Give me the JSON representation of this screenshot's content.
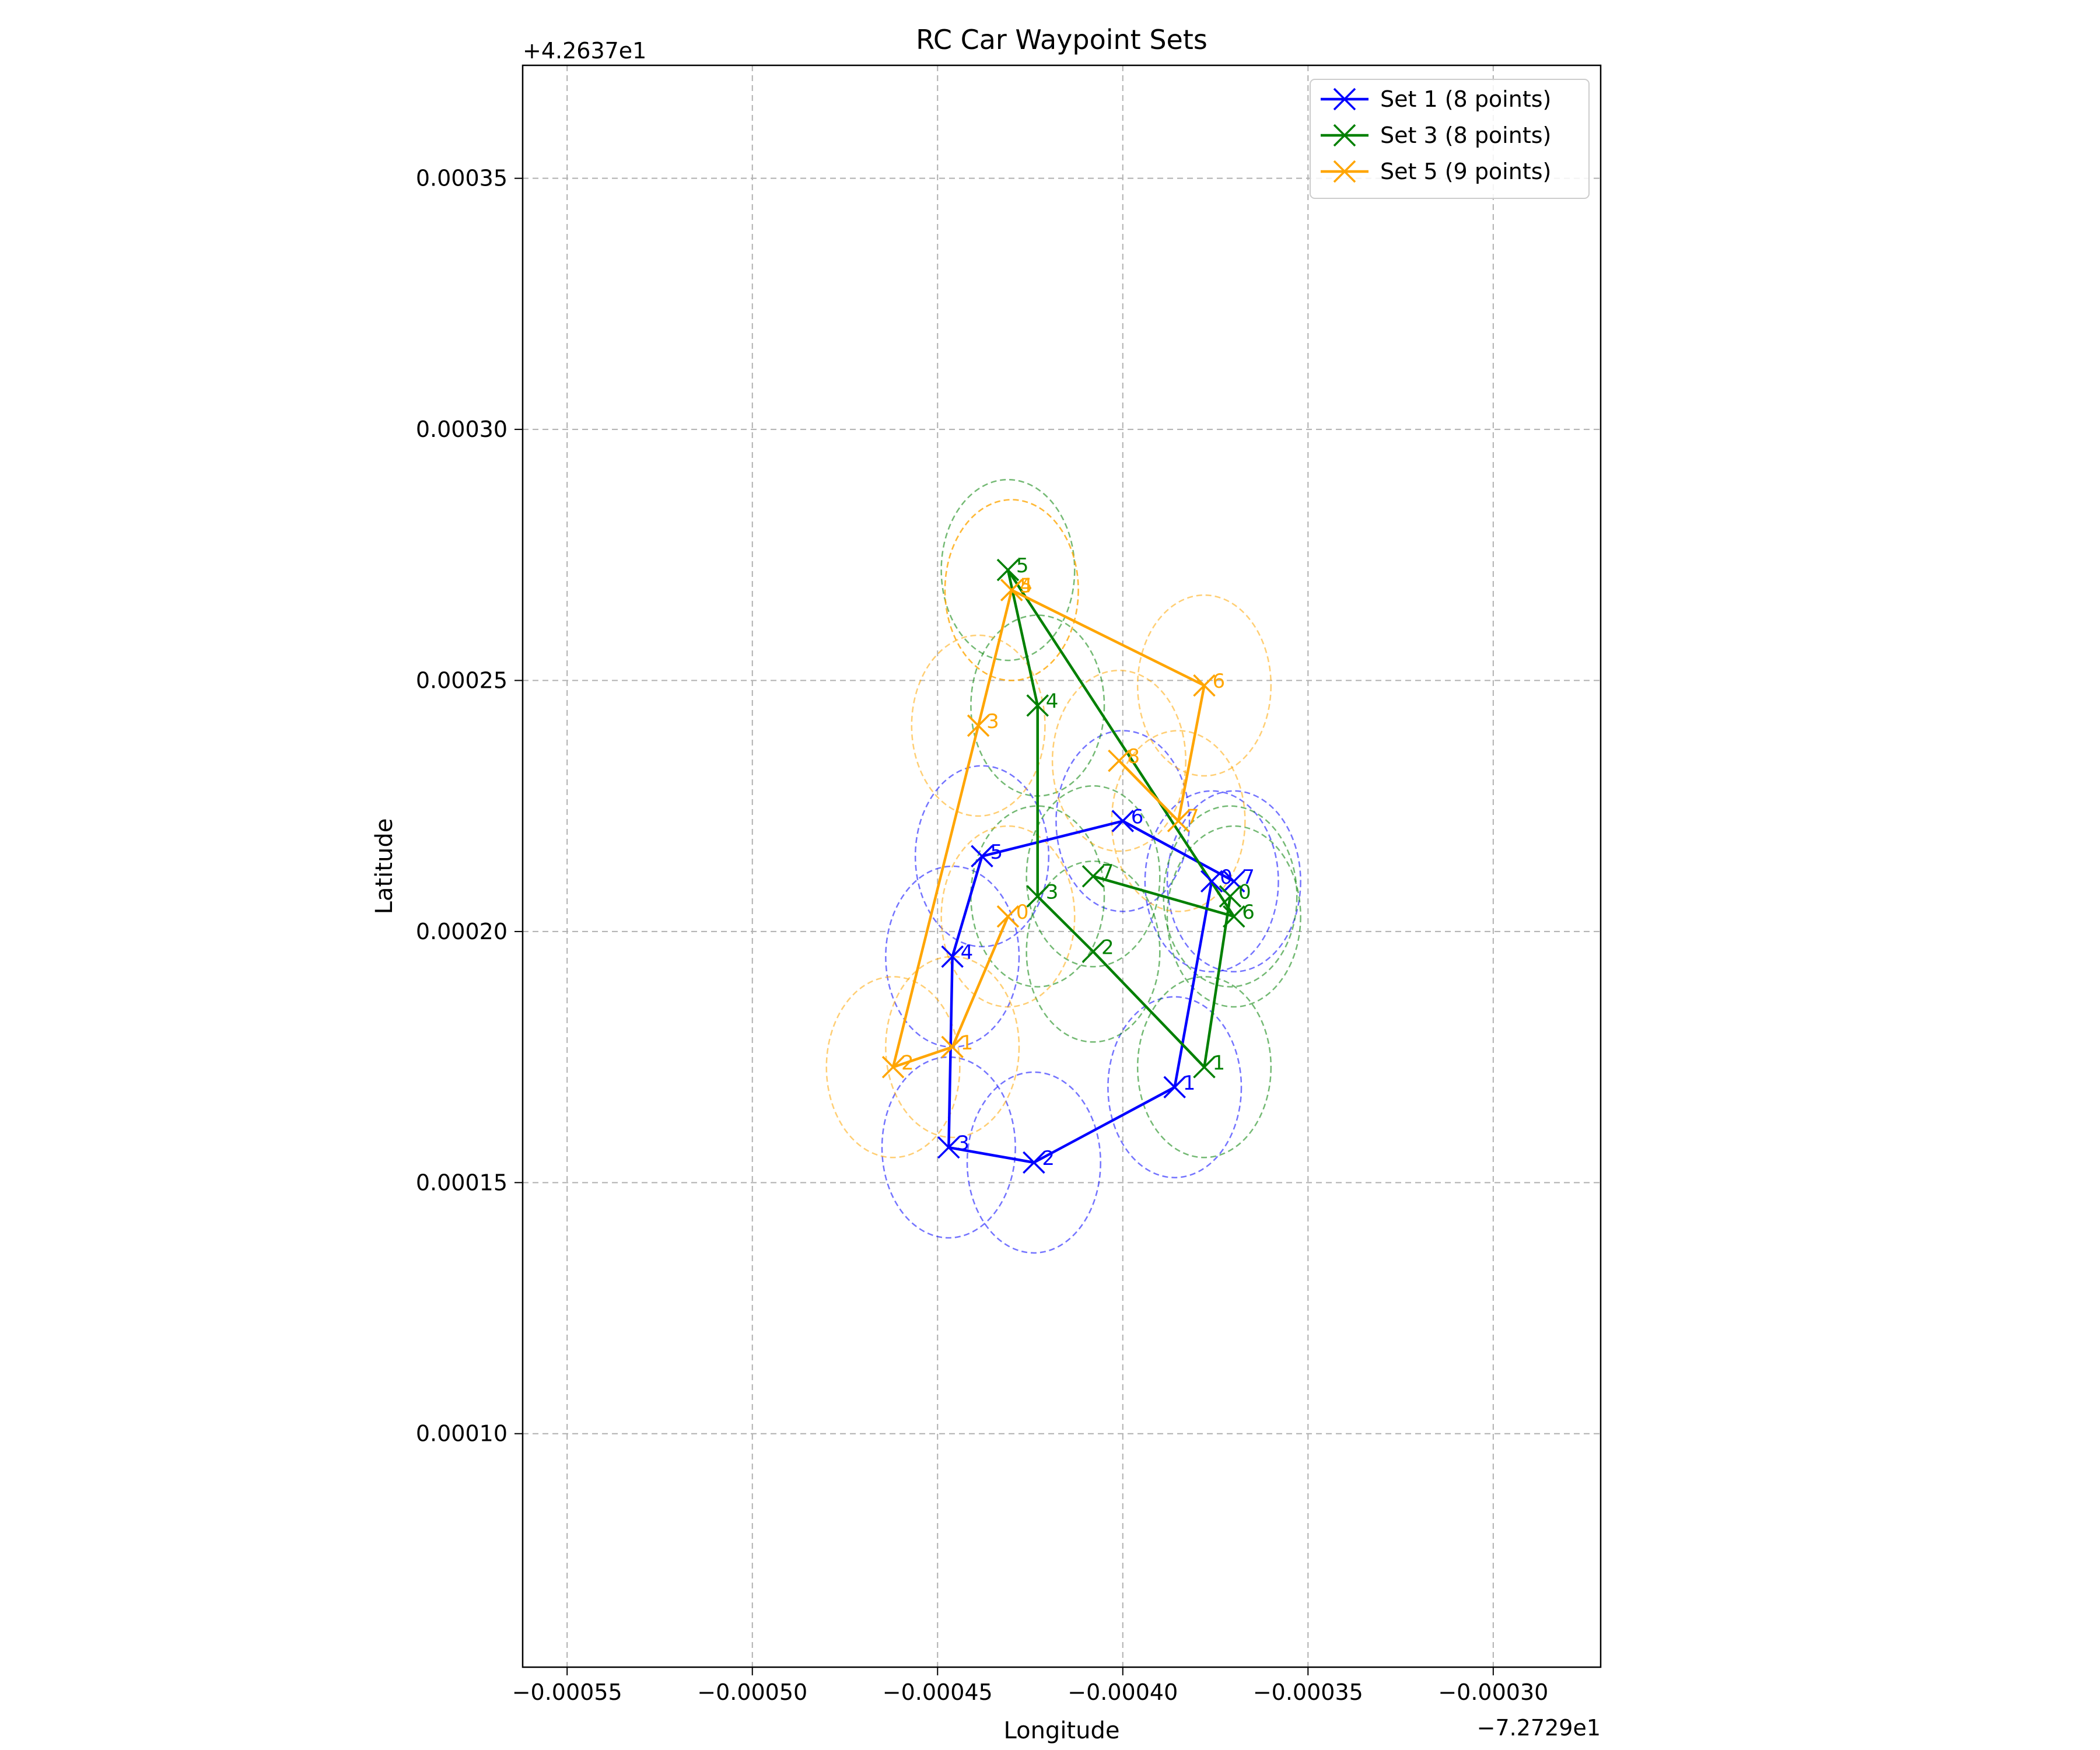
{
  "chart_data": {
    "type": "line",
    "title": "RC Car Waypoint Sets",
    "xlabel": "Longitude",
    "ylabel": "Latitude",
    "x_offset_label": "−7.2729e1",
    "y_offset_label": "+4.2637e1",
    "xlim": [
      -0.000562,
      -0.000271
    ],
    "ylim": [
      5.35e-05,
      0.0003725
    ],
    "x_ticks": [
      -0.00055,
      -0.0005,
      -0.00045,
      -0.0004,
      -0.00035,
      -0.0003
    ],
    "x_tick_labels": [
      "−0.00055",
      "−0.00050",
      "−0.00045",
      "−0.00040",
      "−0.00035",
      "−0.00030"
    ],
    "y_ticks": [
      0.0001,
      0.00015,
      0.0002,
      0.00025,
      0.0003,
      0.00035
    ],
    "y_tick_labels": [
      "0.00010",
      "0.00015",
      "0.00020",
      "0.00025",
      "0.00030",
      "0.00035"
    ],
    "grid": true,
    "legend_position": "top-right",
    "series": [
      {
        "name": "Set 1 (8 points)",
        "color": "#0000ff",
        "radius": 1.8e-05,
        "x": [
          -0.000376,
          -0.000386,
          -0.000424,
          -0.000447,
          -0.000446,
          -0.000438,
          -0.0004,
          -0.00037
        ],
        "y": [
          0.00021,
          0.000169,
          0.000154,
          0.000157,
          0.000195,
          0.000215,
          0.000222,
          0.00021
        ],
        "labels": [
          "0",
          "1",
          "2",
          "3",
          "4",
          "5",
          "6",
          "7"
        ]
      },
      {
        "name": "Set 3 (8 points)",
        "color": "#008000",
        "radius": 1.8e-05,
        "x": [
          -0.000371,
          -0.000378,
          -0.000408,
          -0.000423,
          -0.000423,
          -0.000431,
          -0.00037,
          -0.000408
        ],
        "y": [
          0.000207,
          0.000173,
          0.000196,
          0.000207,
          0.000245,
          0.000272,
          0.000203,
          0.000211
        ],
        "labels": [
          "0",
          "1",
          "2",
          "3",
          "4",
          "5",
          "6",
          "7"
        ]
      },
      {
        "name": "Set 5 (9 points)",
        "color": "#ffa500",
        "radius": 1.8e-05,
        "x": [
          -0.000431,
          -0.000446,
          -0.000462,
          -0.000439,
          -0.00043,
          -0.00043,
          -0.000378,
          -0.000385,
          -0.000401
        ],
        "y": [
          0.000203,
          0.000177,
          0.000173,
          0.000241,
          0.000268,
          0.000268,
          0.000249,
          0.000222,
          0.000234
        ],
        "labels": [
          "0",
          "1",
          "2",
          "3",
          "4",
          "5",
          "6",
          "7",
          "8"
        ]
      }
    ]
  }
}
